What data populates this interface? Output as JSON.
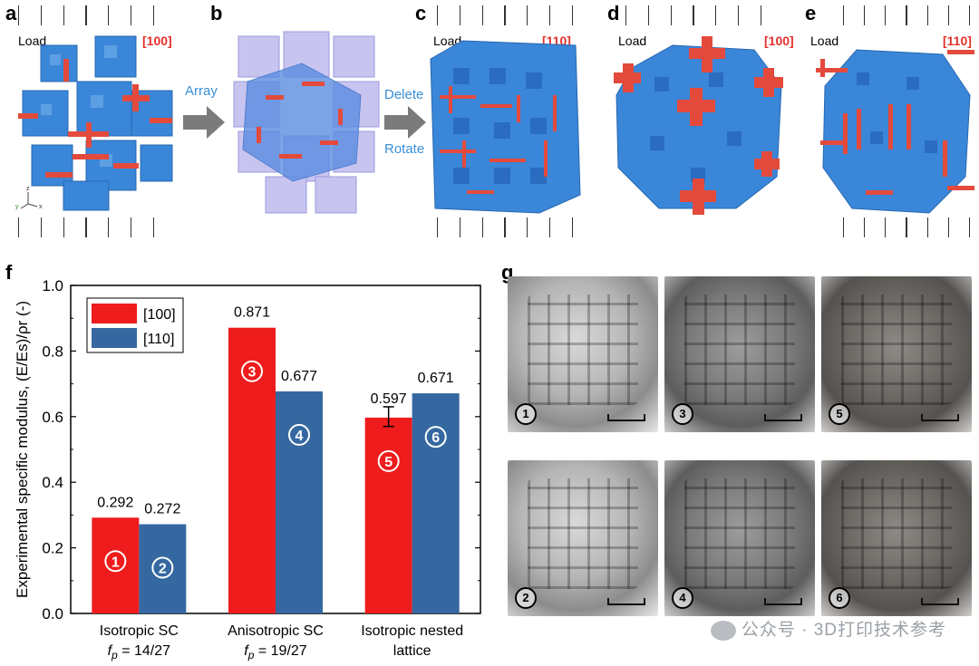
{
  "figure": {
    "panel_labels": [
      "a",
      "b",
      "c",
      "d",
      "e",
      "f",
      "g"
    ],
    "load_label": "Load",
    "panel_a_direction": "[100]",
    "panel_c_direction": "[110]",
    "panel_d_direction": "[100]",
    "panel_e_direction": "[110]",
    "step_array": "Array",
    "step_delete": "Delete",
    "step_rotate": "Rotate",
    "axes_labels": [
      "z",
      "y",
      "x"
    ],
    "colors": {
      "lattice_blue": "#3a86d8",
      "strut_red": "#e34a3c",
      "array_purple": "#b7b4ea",
      "arrow_gray": "#7b7b7b",
      "label_blue": "#3b8fd6"
    }
  },
  "chart_data": {
    "type": "bar",
    "title": "",
    "ylabel": "Experimental specific modulus, (E/Es)/ρr (-)",
    "xlabel": "",
    "ylim": [
      0.0,
      1.0
    ],
    "yticks": [
      "0.0",
      "0.2",
      "0.4",
      "0.6",
      "0.8",
      "1.0"
    ],
    "legend_position": "top-left",
    "categories": [
      {
        "line1": "Isotropic SC",
        "line2": "fp = 14/27"
      },
      {
        "line1": "Anisotropic SC",
        "line2": "fp = 19/27"
      },
      {
        "line1": "Isotropic nested",
        "line2": "lattice"
      }
    ],
    "series": [
      {
        "name": "[100]",
        "color": "#ee1c1c",
        "values": [
          0.292,
          0.871,
          0.597
        ],
        "labels": [
          "0.292",
          "0.871",
          "0.597"
        ],
        "markers": [
          "①",
          "③",
          "⑤"
        ]
      },
      {
        "name": "[110]",
        "color": "#3568a0",
        "values": [
          0.272,
          0.677,
          0.671
        ],
        "labels": [
          "0.272",
          "0.677",
          "0.671"
        ],
        "markers": [
          "②",
          "④",
          "⑥"
        ]
      }
    ],
    "error_bar": {
      "series": 0,
      "category": 2,
      "low": 0.57,
      "high": 0.63
    }
  },
  "photos": {
    "items": [
      {
        "num": "①",
        "tone": "light"
      },
      {
        "num": "③",
        "tone": "mid"
      },
      {
        "num": "⑤",
        "tone": "dark"
      },
      {
        "num": "②",
        "tone": "light"
      },
      {
        "num": "④",
        "tone": "mid"
      },
      {
        "num": "⑥",
        "tone": "dark"
      }
    ]
  },
  "watermark": "公众号 · 3D打印技术参考"
}
